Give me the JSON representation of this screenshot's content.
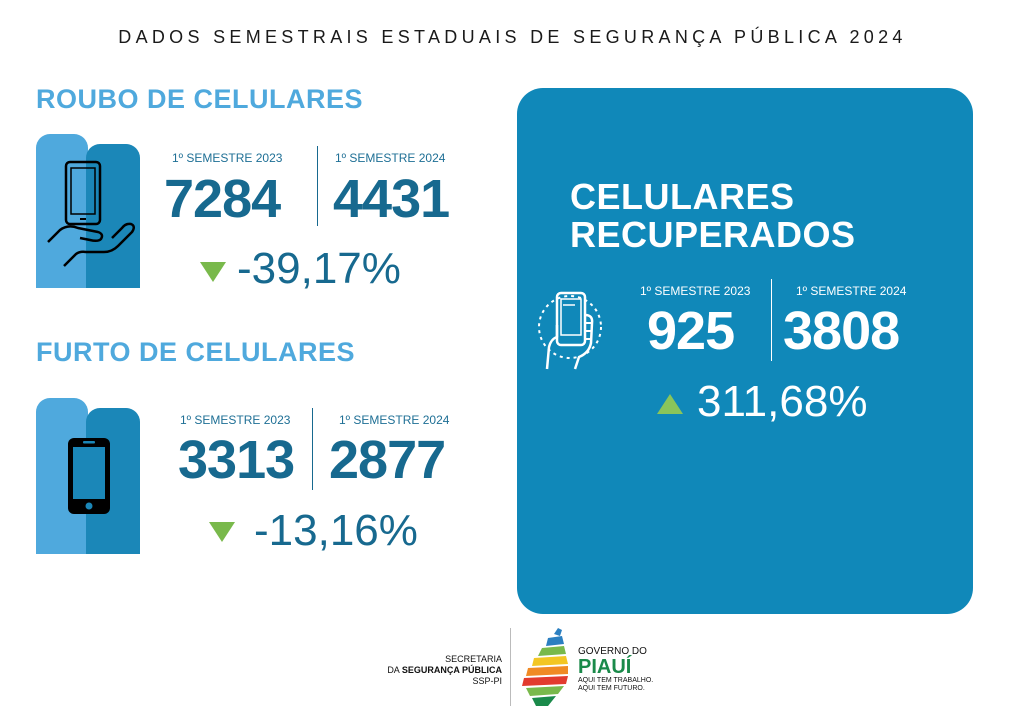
{
  "header": {
    "title": "DADOS SEMESTRAIS ESTADUAIS DE SEGURANÇA PÚBLICA 2024"
  },
  "roubo": {
    "title": "ROUBO DE CELULARES",
    "label_2023": "1º SEMESTRE 2023",
    "label_2024": "1º SEMESTRE 2024",
    "value_2023": "7284",
    "value_2024": "4431",
    "change": "-39,17%",
    "icon": "phone-in-hand-icon"
  },
  "furto": {
    "title": "FURTO DE CELULARES",
    "label_2023": "1º SEMESTRE 2023",
    "label_2024": "1º SEMESTRE 2024",
    "value_2023": "3313",
    "value_2024": "2877",
    "change": "-13,16%",
    "icon": "phone-icon"
  },
  "recuperados": {
    "title_line1": "CELULARES",
    "title_line2": "RECUPERADOS",
    "label_2023": "1º SEMESTRE 2023",
    "label_2024": "1º SEMESTRE 2024",
    "value_2023": "925",
    "value_2024": "3808",
    "change": "311,68%",
    "icon": "hand-holding-phone-icon"
  },
  "footer": {
    "ssp_line1": "SECRETARIA",
    "ssp_line2_prefix": "DA ",
    "ssp_line2_bold": "SEGURANÇA PÚBLICA",
    "ssp_line3": "SSP-PI",
    "gov_line1": "GOVERNO DO",
    "gov_line2": "PIAUÍ",
    "gov_line3": "AQUI TEM TRABALHO.",
    "gov_line4": "AQUI TEM FUTURO."
  },
  "colors": {
    "light_blue": "#4fa9dd",
    "dark_blue": "#17698f",
    "panel_blue": "#1088b9",
    "green": "#79b94b"
  }
}
